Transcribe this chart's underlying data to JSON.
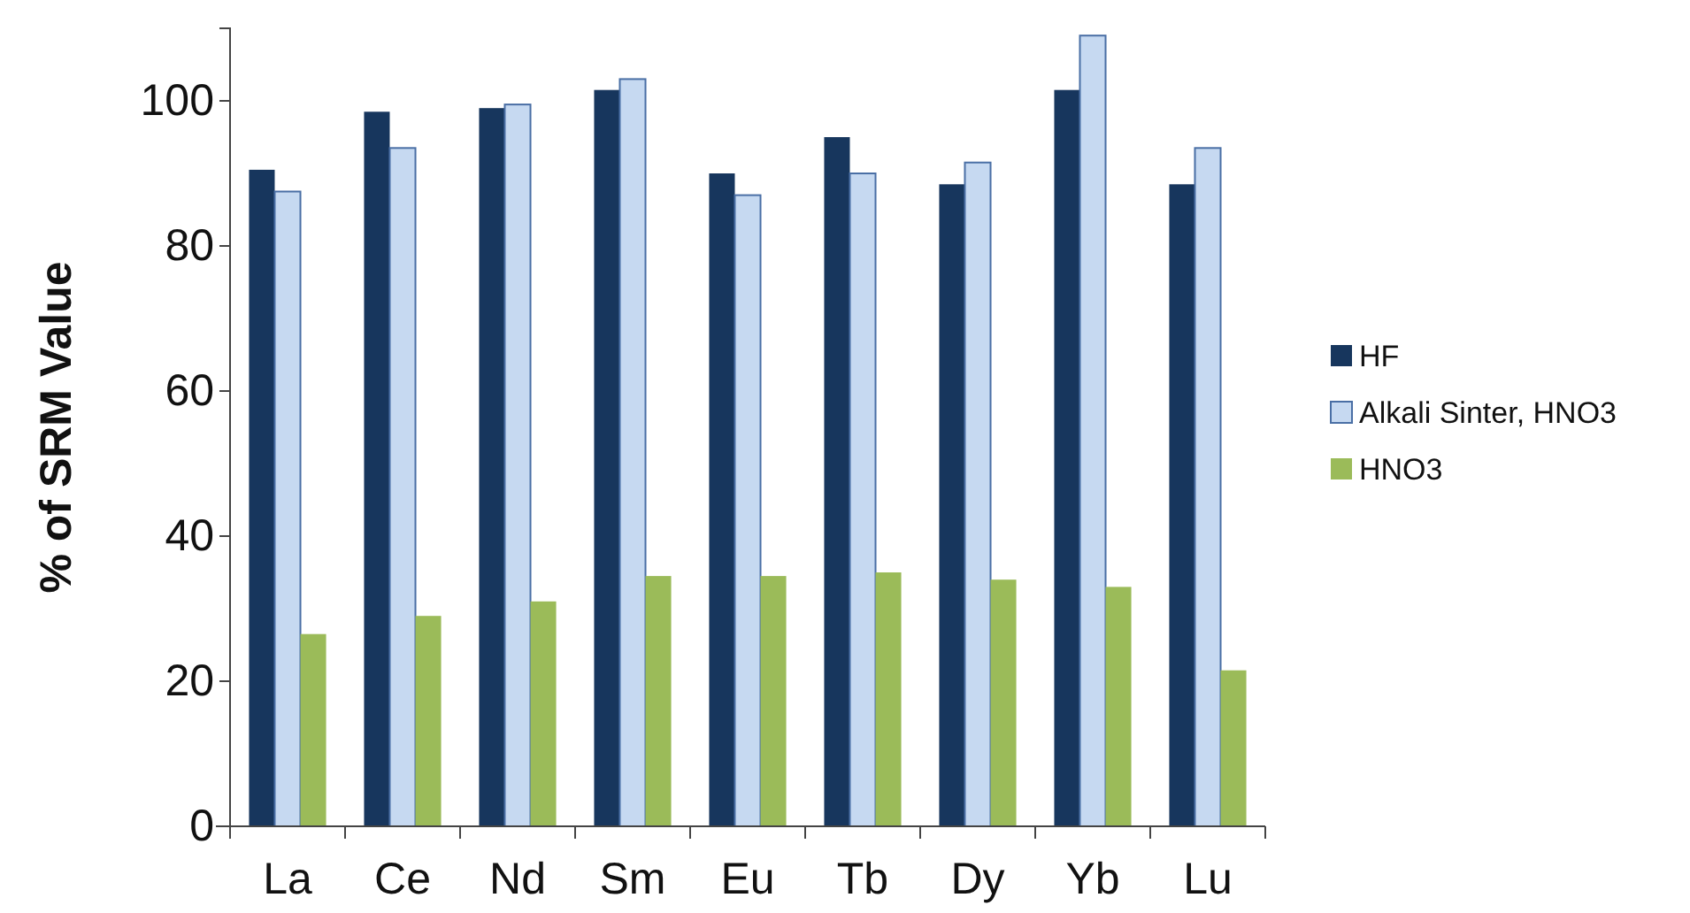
{
  "chart_data": {
    "type": "bar",
    "ylabel": "% of SRM Value",
    "categories": [
      "La",
      "Ce",
      "Nd",
      "Sm",
      "Eu",
      "Tb",
      "Dy",
      "Yb",
      "Lu"
    ],
    "series": [
      {
        "name": "HF",
        "color": "#17365d",
        "values": [
          90.5,
          98.5,
          99,
          101.5,
          90,
          95,
          88.5,
          101.5,
          88.5
        ]
      },
      {
        "name": "Alkali Sinter, HNO3",
        "color": "#c6d9f1",
        "values": [
          87.5,
          93.5,
          99.5,
          103,
          87,
          90,
          91.5,
          109,
          93.5
        ]
      },
      {
        "name": "HNO3",
        "color": "#9bbb59",
        "values": [
          26.5,
          29,
          31,
          34.5,
          34.5,
          35,
          34,
          33,
          21.5
        ]
      }
    ],
    "ylim": [
      0,
      110
    ],
    "yticks": [
      0,
      20,
      40,
      60,
      80,
      100
    ],
    "grid": false,
    "legend": "right"
  }
}
